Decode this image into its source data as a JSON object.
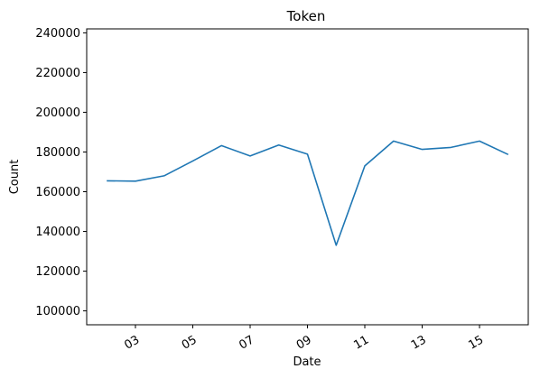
{
  "chart_data": {
    "type": "line",
    "title": "Token",
    "xlabel": "Date",
    "ylabel": "Count",
    "x_tick_labels": [
      "03",
      "05",
      "07",
      "09",
      "11",
      "13",
      "15"
    ],
    "x_tick_days": [
      3,
      5,
      7,
      9,
      11,
      13,
      15
    ],
    "x_range": [
      1.3,
      16.7
    ],
    "y_ticks": [
      100000,
      120000,
      140000,
      160000,
      180000,
      200000,
      220000,
      240000
    ],
    "y_tick_labels": [
      "100000",
      "120000",
      "140000",
      "160000",
      "180000",
      "200000",
      "220000",
      "240000"
    ],
    "ylim": [
      93000,
      242000
    ],
    "grid": false,
    "series": [
      {
        "color": "#1f77b4",
        "x": [
          2,
          3,
          4,
          5,
          6,
          7,
          8,
          9,
          10,
          11,
          12,
          13,
          14,
          15,
          16
        ],
        "values": [
          165500,
          165300,
          168000,
          175500,
          183200,
          178000,
          183500,
          178900,
          133000,
          173000,
          185500,
          181300,
          182300,
          185500,
          178700
        ]
      }
    ]
  }
}
